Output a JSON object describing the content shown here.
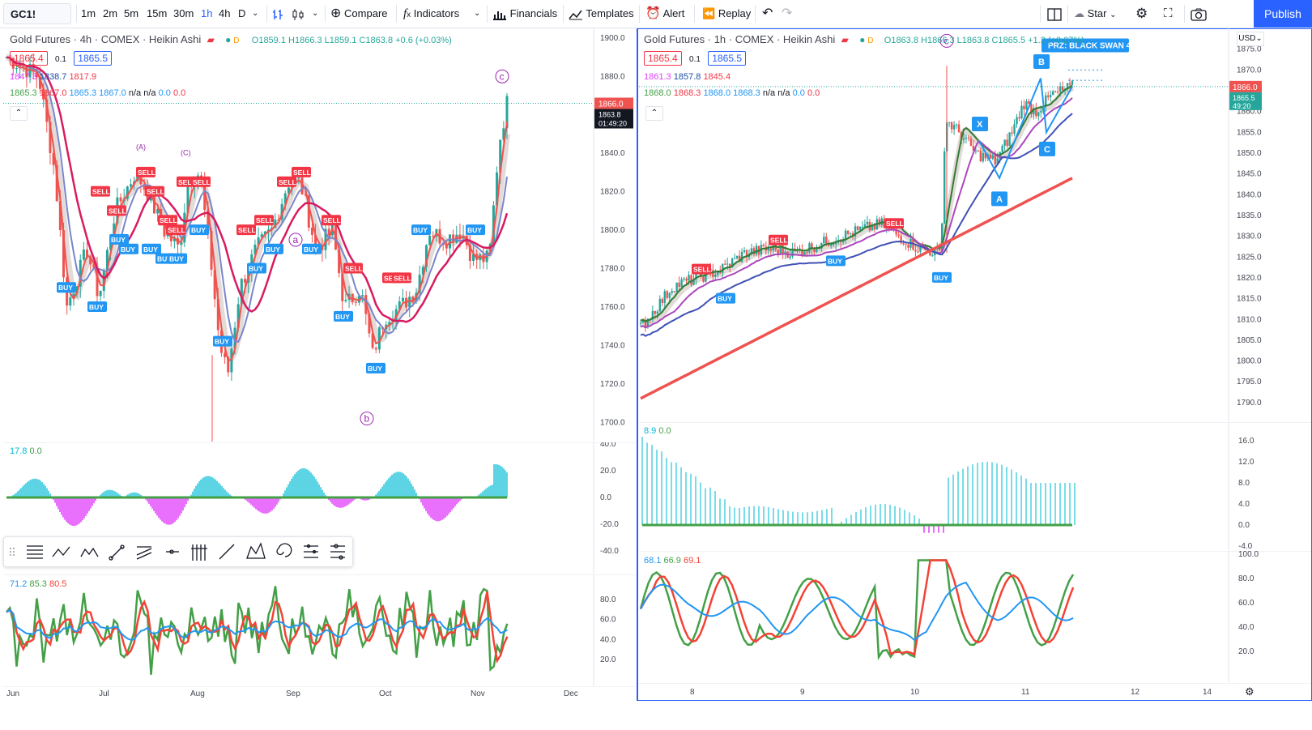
{
  "toolbar": {
    "symbol": "GC1!",
    "intervals": [
      "1m",
      "2m",
      "5m",
      "15m",
      "30m",
      "1h",
      "4h",
      "D"
    ],
    "active_interval": "1h",
    "compare": "Compare",
    "indicators": "Indicators",
    "financials": "Financials",
    "templates": "Templates",
    "alert": "Alert",
    "replay": "Replay",
    "star": "Star",
    "publish": "Publish",
    "icons": [
      "bar-style-icon",
      "candle-style-icon",
      "compare-icon",
      "indicators-icon",
      "financials-icon",
      "templates-icon",
      "alert-icon",
      "replay-icon",
      "undo-icon",
      "redo-icon",
      "layout-icon",
      "cloud-icon",
      "settings-icon",
      "fullscreen-icon",
      "snapshot-icon"
    ]
  },
  "left_chart": {
    "title": "Gold Futures · 4h · COMEX · Heikin Ashi",
    "ohlc": "O1859.1 H1866.3 L1859.1 C1863.8 +0.6 (+0.03%)",
    "bid": "1865.4",
    "step": "0.1",
    "ask": "1865.5",
    "ma_values": [
      "1847.3",
      "1838.7",
      "1817.9"
    ],
    "ind_values": [
      "1865.3",
      "1867.0",
      "1865.3",
      "1867.0",
      "n/a",
      "n/a",
      "0.0",
      "0.0"
    ],
    "price_axis": [
      "1900.0",
      "1880.0",
      "1860.0",
      "1840.0",
      "1820.0",
      "1800.0",
      "1780.0",
      "1760.0",
      "1740.0",
      "1720.0",
      "1700.0"
    ],
    "last_price": "1866.0",
    "last_close": "1863.8",
    "countdown": "01:49:20",
    "time_axis": [
      "Jun",
      "Jul",
      "Aug",
      "Sep",
      "Oct",
      "Nov",
      "Dec"
    ],
    "osc_values": [
      "17.8",
      "0.0"
    ],
    "osc_axis": [
      "40.0",
      "20.0",
      "0.0",
      "-20.0",
      "-40.0"
    ],
    "stoch_values": [
      "71.2",
      "85.3",
      "80.5"
    ],
    "stoch_axis": [
      "80.0",
      "60.0",
      "40.0",
      "20.0"
    ],
    "wave_labels": [
      "a",
      "b",
      "c"
    ],
    "small_labels": [
      "(A)",
      "(C)"
    ],
    "signals": [
      {
        "t": "SELL"
      },
      {
        "t": "SELL"
      },
      {
        "t": "SELL"
      },
      {
        "t": "SELL"
      },
      {
        "t": "SELL"
      },
      {
        "t": "SELL"
      },
      {
        "t": "SELL"
      },
      {
        "t": "SELL"
      },
      {
        "t": "SELL"
      },
      {
        "t": "SELL"
      },
      {
        "t": "SELL"
      },
      {
        "t": "SELL"
      },
      {
        "t": "SELL"
      },
      {
        "t": "SELL"
      },
      {
        "t": "SELL"
      },
      {
        "t": "SELL"
      },
      {
        "t": "BUY"
      },
      {
        "t": "BUY"
      },
      {
        "t": "BUY"
      },
      {
        "t": "BUY"
      },
      {
        "t": "BUY"
      },
      {
        "t": "BUY"
      },
      {
        "t": "BUY"
      },
      {
        "t": "BUY"
      },
      {
        "t": "BUY"
      },
      {
        "t": "BUY"
      },
      {
        "t": "BUY"
      },
      {
        "t": "BUY"
      },
      {
        "t": "BUY"
      },
      {
        "t": "BUY"
      },
      {
        "t": "BUY"
      },
      {
        "t": "BUY"
      }
    ]
  },
  "right_chart": {
    "title": "Gold Futures · 1h · COMEX · Heikin Ashi",
    "ohlc": "O1863.8 H1866.3 L1863.8 C1865.5 +1.2 (+0.07%)",
    "bid": "1865.4",
    "step": "0.1",
    "ask": "1865.5",
    "ma_values": [
      "1861.3",
      "1857.8",
      "1845.4"
    ],
    "ind_values": [
      "1868.0",
      "1868.3",
      "1868.0",
      "1868.3",
      "n/a",
      "n/a",
      "0.0",
      "0.0"
    ],
    "currency": "USD",
    "price_axis": [
      "1875.0",
      "1870.0",
      "1865.0",
      "1860.0",
      "1855.0",
      "1850.0",
      "1845.0",
      "1840.0",
      "1835.0",
      "1830.0",
      "1825.0",
      "1820.0",
      "1815.0",
      "1810.0",
      "1805.0",
      "1800.0",
      "1795.0",
      "1790.0"
    ],
    "last_price": "1866.0",
    "last_close": "1865.5",
    "countdown": "49:20",
    "time_axis": [
      "8",
      "9",
      "10",
      "11",
      "12",
      "14"
    ],
    "osc_values": [
      "8.9",
      "0.0"
    ],
    "osc_axis": [
      "16.0",
      "12.0",
      "8.0",
      "4.0",
      "0.0",
      "-4.0"
    ],
    "stoch_values": [
      "68.1",
      "66.9",
      "69.1"
    ],
    "stoch_axis": [
      "100.0",
      "80.0",
      "60.0",
      "40.0",
      "20.0"
    ],
    "wave_label": "c",
    "prz_label": "PRZ: BLACK SWAN 4",
    "pattern_points": [
      "X",
      "A",
      "B",
      "C"
    ],
    "signals": [
      {
        "t": "SELL"
      },
      {
        "t": "SELL"
      },
      {
        "t": "SELL"
      },
      {
        "t": "BUY"
      },
      {
        "t": "BUY"
      },
      {
        "t": "BUY"
      }
    ]
  },
  "drawing_toolbar": {
    "icons": [
      "drag-handle-icon",
      "horizontal-lines-icon",
      "abc-pattern-icon",
      "elliott-wave-icon",
      "trend-angle-icon",
      "parallel-channel-icon",
      "horizontal-ray-icon",
      "fib-time-icon",
      "trend-line-icon",
      "xabcd-pattern-icon",
      "fib-spiral-icon",
      "gann-fan-icon",
      "more-tools-icon"
    ]
  },
  "colors": {
    "accent": "#2962ff",
    "sell": "#f23645",
    "buy": "#2196f3",
    "up": "#26a69a",
    "down": "#ef5350",
    "green_line": "#43a047",
    "red_line": "#f44336",
    "blue_line": "#2196f3",
    "purple": "#9c27b0",
    "magenta": "#e040fb",
    "teal": "#4dd0e1"
  }
}
